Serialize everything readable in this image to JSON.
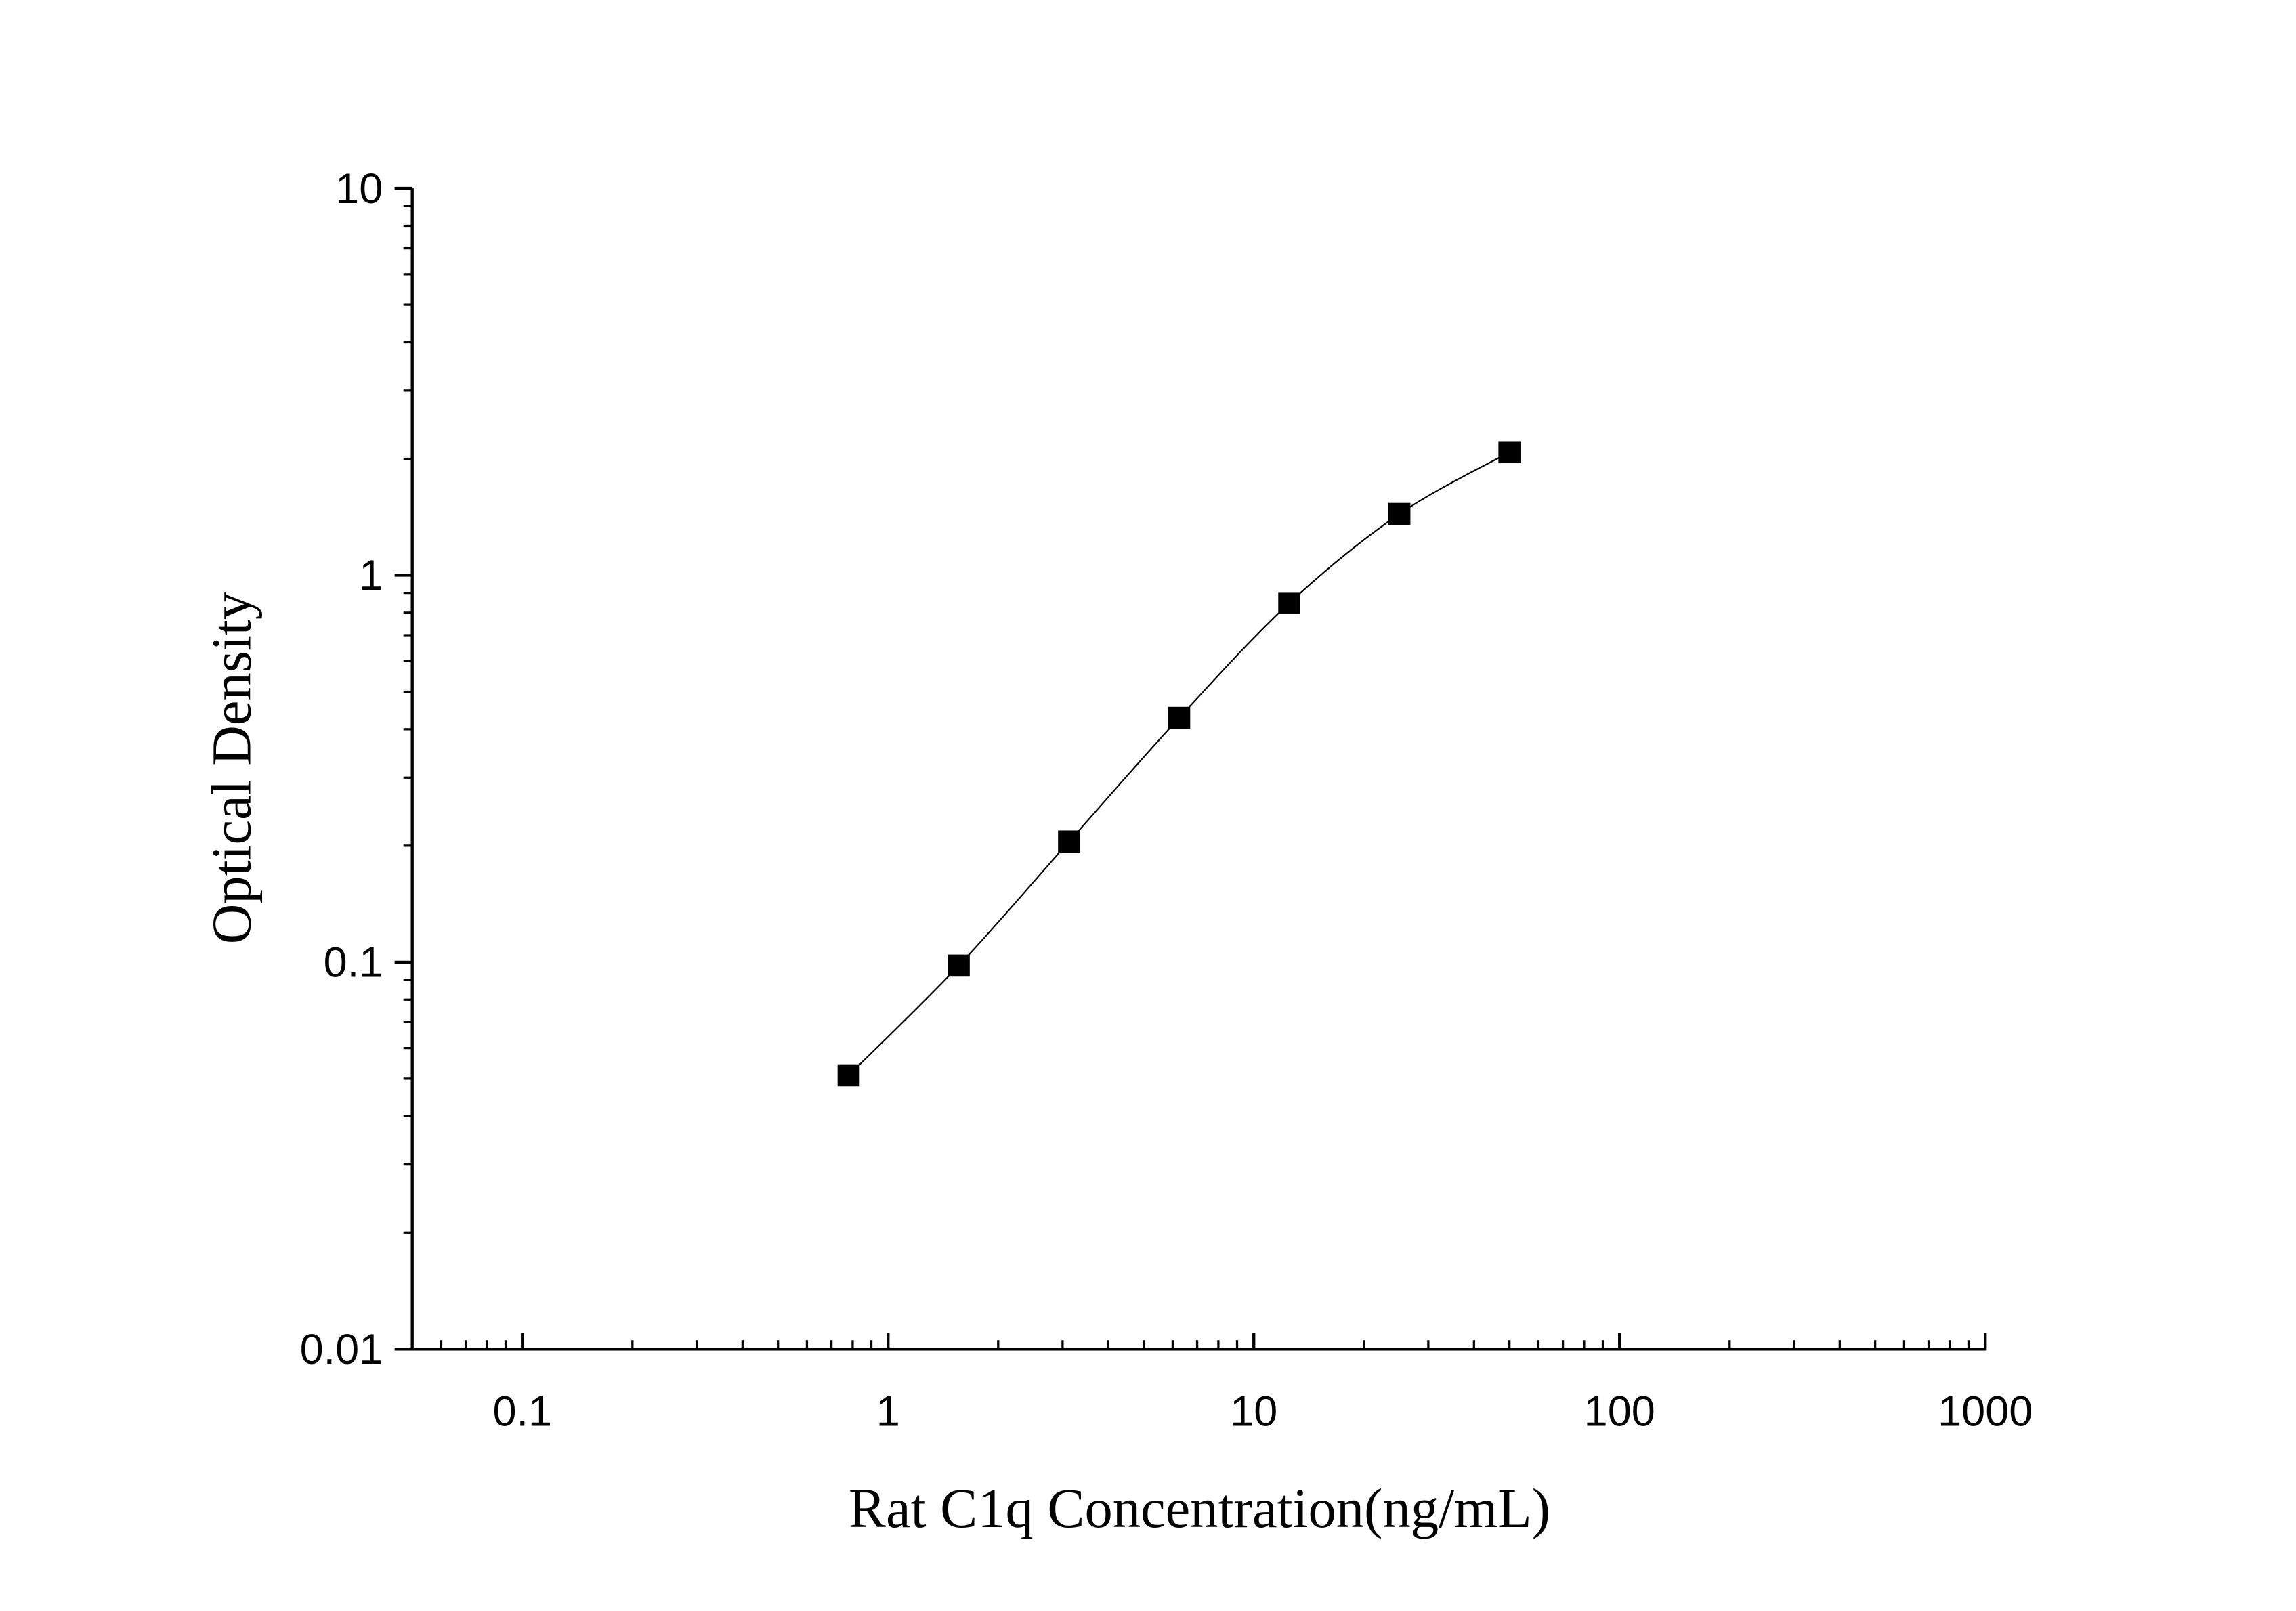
{
  "chart_data": {
    "type": "scatter",
    "title": "",
    "xlabel": "Rat C1q Concentration(ng/mL)",
    "ylabel": "Optical Density",
    "xscale": "log",
    "yscale": "log",
    "xlim": [
      0.05,
      1000
    ],
    "ylim": [
      0.01,
      10
    ],
    "x_ticks": [
      0.1,
      1,
      10,
      100,
      1000
    ],
    "x_tick_labels": [
      "0.1",
      "1",
      "10",
      "100",
      "1000"
    ],
    "y_ticks": [
      0.01,
      0.1,
      1,
      10
    ],
    "y_tick_labels": [
      "0.01",
      "0.1",
      "1",
      "10"
    ],
    "grid": false,
    "legend": "none",
    "marker": "square",
    "fit_curve": true,
    "colors": {
      "marker": "#000000",
      "line": "#000000"
    },
    "series": [
      {
        "x": [
          0.78,
          1.56,
          3.125,
          6.25,
          12.5,
          25,
          50
        ],
        "y": [
          0.051,
          0.098,
          0.205,
          0.428,
          0.847,
          1.44,
          2.08
        ]
      }
    ]
  }
}
